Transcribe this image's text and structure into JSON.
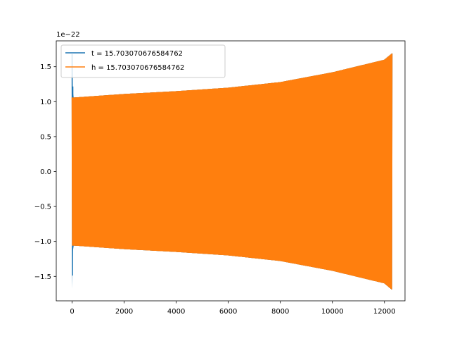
{
  "chart_data": {
    "type": "line",
    "title": "",
    "xlabel": "",
    "ylabel": "",
    "y_offset_label": "1e−22",
    "y_multiplier": 1e-22,
    "xlim": [
      -609,
      12790
    ],
    "ylim": [
      -1.85,
      1.87
    ],
    "x_ticks": [
      0,
      2000,
      4000,
      6000,
      8000,
      10000,
      12000
    ],
    "x_tick_labels": [
      "0",
      "2000",
      "4000",
      "6000",
      "8000",
      "10000",
      "12000"
    ],
    "y_ticks": [
      -1.5,
      -1.0,
      -0.5,
      0.0,
      0.5,
      1.0,
      1.5
    ],
    "y_tick_labels": [
      "−1.5",
      "−1.0",
      "−0.5",
      "0.0",
      "0.5",
      "1.0",
      "1.5"
    ],
    "grid": false,
    "legend_position": "top-left",
    "series": [
      {
        "name": "t = 15.703070676584762",
        "color": "#1f77b4",
        "x_range": [
          0,
          12290
        ],
        "envelope_x": [
          0,
          20,
          40,
          60,
          80,
          100,
          2000,
          4000,
          6000,
          8000,
          10000,
          12000,
          12290
        ],
        "envelope_upper": [
          1.68,
          1.4,
          0.9,
          1.06,
          1.06,
          1.06,
          1.11,
          1.15,
          1.2,
          1.28,
          1.42,
          1.6,
          1.69
        ],
        "envelope_lower": [
          -1.68,
          -1.4,
          -0.9,
          -1.06,
          -1.06,
          -1.06,
          -1.11,
          -1.15,
          -1.2,
          -1.28,
          -1.42,
          -1.6,
          -1.69
        ]
      },
      {
        "name": "h = 15.703070676584762",
        "color": "#ff7f0e",
        "x_range": [
          0,
          12290
        ],
        "envelope_x": [
          0,
          100,
          2000,
          4000,
          6000,
          8000,
          10000,
          12000,
          12290
        ],
        "envelope_upper": [
          1.06,
          1.06,
          1.11,
          1.15,
          1.2,
          1.28,
          1.42,
          1.6,
          1.69
        ],
        "envelope_lower": [
          -1.06,
          -1.06,
          -1.11,
          -1.15,
          -1.2,
          -1.28,
          -1.42,
          -1.6,
          -1.69
        ]
      }
    ]
  }
}
